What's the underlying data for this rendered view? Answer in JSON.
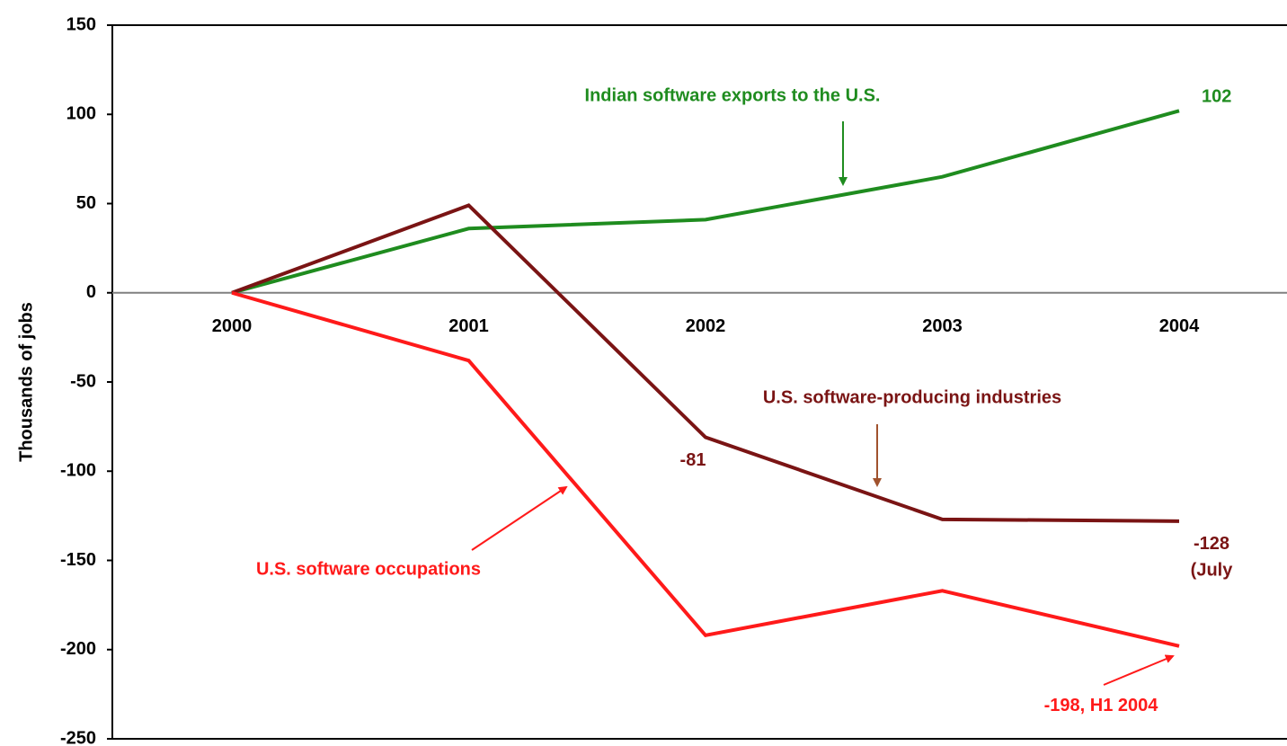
{
  "chart_data": {
    "type": "line",
    "ylabel": "Thousands of jobs",
    "categories": [
      "2000",
      "2001",
      "2002",
      "2003",
      "2004"
    ],
    "series": [
      {
        "name": "Indian software exports to the U.S.",
        "color": "#1f8c1f",
        "values": [
          0,
          36,
          41,
          65,
          102
        ],
        "value_labels": [
          null,
          null,
          null,
          null,
          "102"
        ]
      },
      {
        "name": "U.S. software-producing industries",
        "color": "#7a1414",
        "values": [
          0,
          49,
          -81,
          -127,
          -128
        ],
        "value_labels": [
          null,
          null,
          "-81",
          null,
          "-128"
        ]
      },
      {
        "name": "U.S. software occupations",
        "color": "#ff1a1a",
        "values": [
          0,
          -38,
          -192,
          -167,
          -198
        ],
        "value_labels": [
          null,
          null,
          null,
          null,
          "-198, H1 2004"
        ]
      }
    ],
    "annotations": [
      "(July"
    ],
    "ylim": [
      -250,
      150
    ],
    "yticks": [
      -250,
      -200,
      -150,
      -100,
      -50,
      0,
      50,
      100,
      150
    ],
    "grid": false
  }
}
